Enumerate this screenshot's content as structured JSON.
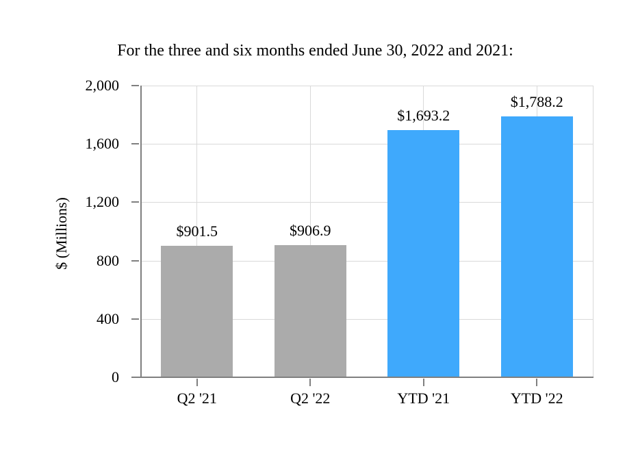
{
  "chart_data": {
    "type": "bar",
    "title": "For the three and six months ended June 30, 2022 and 2021:",
    "categories": [
      "Q2 '21",
      "Q2 '22",
      "YTD '21",
      "YTD '22"
    ],
    "values": [
      901.5,
      906.9,
      1693.2,
      1788.2
    ],
    "data_labels": [
      "$901.5",
      "$906.9",
      "$1,693.2",
      "$1,788.2"
    ],
    "bar_colors": [
      "#ABABAB",
      "#ABABAB",
      "#3FA9FC",
      "#3FA9FC"
    ],
    "ylabel": "$ (Millions)",
    "xlabel": "",
    "ylim": [
      0,
      2000
    ],
    "ytick_interval": 400,
    "ytick_labels": [
      "0",
      "400",
      "800",
      "1,200",
      "1,600",
      "2,000"
    ],
    "grid": "horizontal gridlines at y ticks, vertical gridlines at category centers and right edge",
    "legend_position": "none"
  },
  "colors": {
    "background": "#FFFFFF",
    "axis_line": "#7F7F7F",
    "gridline": "#D9D9D9",
    "text": "#000000",
    "bar_gray": "#ABABAB",
    "bar_blue": "#3FA9FC"
  }
}
